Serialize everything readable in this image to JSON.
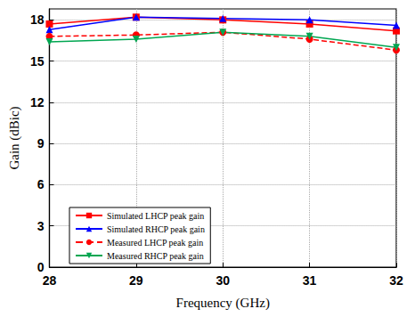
{
  "chart_data": {
    "type": "line",
    "x_label": "Frequency (GHz)",
    "y_label": "Gain (dBic)",
    "x": [
      28,
      29,
      30,
      31,
      32
    ],
    "series": [
      {
        "name": "Simulated LHCP peak gain",
        "color": "#ff0000",
        "marker": "square",
        "line_style": "solid",
        "values": [
          17.7,
          18.2,
          18.0,
          17.7,
          17.2
        ]
      },
      {
        "name": "Simulated RHCP peak gain",
        "color": "#0000ff",
        "marker": "triangle",
        "line_style": "solid",
        "values": [
          17.3,
          18.2,
          18.1,
          18.0,
          17.6
        ]
      },
      {
        "name": "Measured LHCP peak gain",
        "color": "#ff0000",
        "marker": "circle",
        "line_style": "dashed",
        "values": [
          16.8,
          16.9,
          17.1,
          16.6,
          15.8
        ]
      },
      {
        "name": "Measured RHCP peak gain",
        "color": "#00a651",
        "marker": "triangle-down",
        "line_style": "solid",
        "values": [
          16.4,
          16.6,
          17.1,
          16.8,
          16.0
        ]
      }
    ],
    "xlim": [
      28,
      32
    ],
    "xticks": [
      28,
      29,
      30,
      31,
      32
    ],
    "ylim": [
      0,
      18.8
    ],
    "yticks": [
      0,
      3,
      6,
      9,
      12,
      15,
      18
    ],
    "grid": true,
    "legend": "lower left"
  }
}
